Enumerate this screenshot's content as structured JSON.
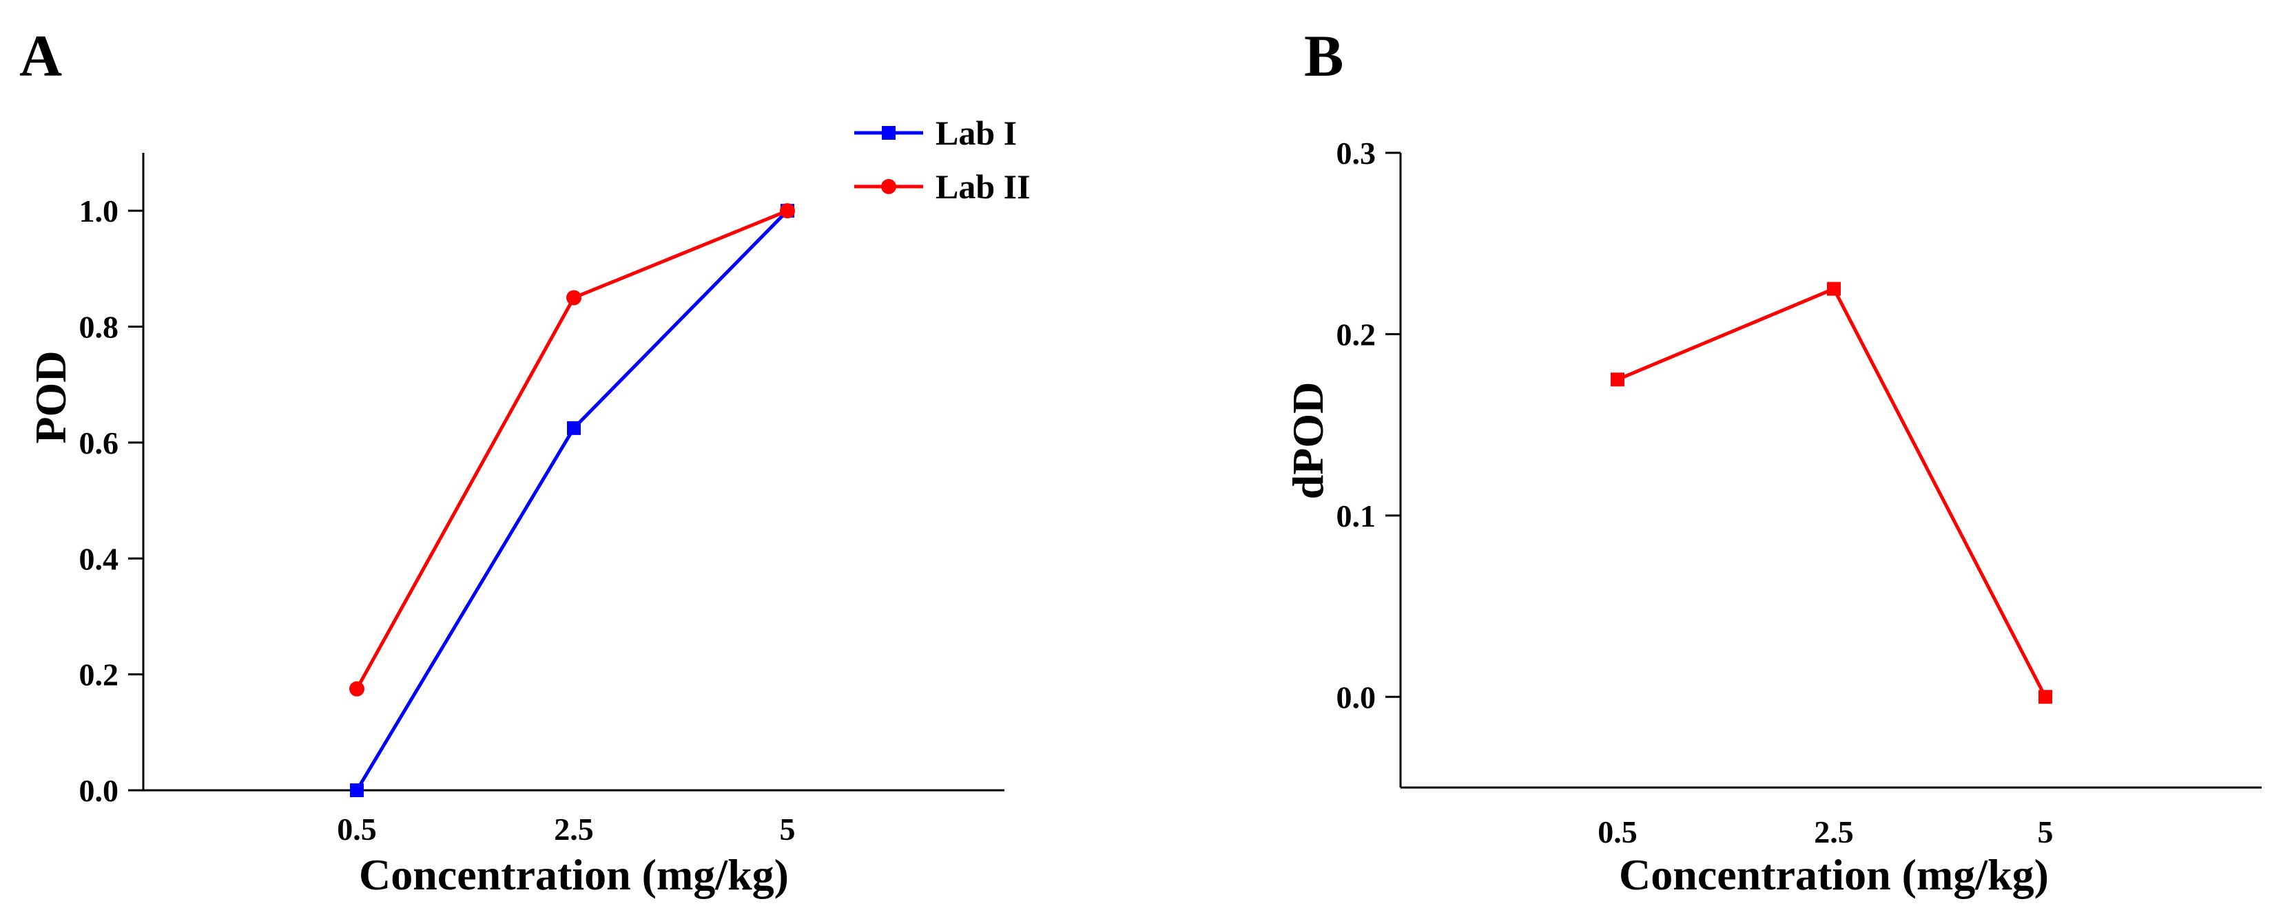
{
  "chart_data": [
    {
      "panel": "A",
      "type": "line",
      "categories": [
        "0.5",
        "2.5",
        "5"
      ],
      "series": [
        {
          "name": "Lab I",
          "color": "#0000ff",
          "marker": "square",
          "values": [
            0.0,
            0.625,
            1.0
          ]
        },
        {
          "name": "Lab II",
          "color": "#ff0000",
          "marker": "circle",
          "values": [
            0.175,
            0.85,
            1.0
          ]
        }
      ],
      "xlabel": "Concentration (mg/kg)",
      "ylabel": "POD",
      "ylim": [
        0.0,
        1.1
      ],
      "yticks": [
        "0.0",
        "0.2",
        "0.4",
        "0.6",
        "0.8",
        "1.0"
      ],
      "legend": "top-right",
      "grid": false
    },
    {
      "panel": "B",
      "type": "line",
      "categories": [
        "0.5",
        "2.5",
        "5"
      ],
      "series": [
        {
          "name": "dPOD",
          "color": "#ff0000",
          "marker": "square",
          "values": [
            0.175,
            0.225,
            0.0
          ]
        }
      ],
      "xlabel": "Concentration (mg/kg)",
      "ylabel": "dPOD",
      "ylim": [
        -0.05,
        0.3
      ],
      "yticks": [
        "0.0",
        "0.1",
        "0.2",
        "0.3"
      ],
      "grid": false
    }
  ]
}
